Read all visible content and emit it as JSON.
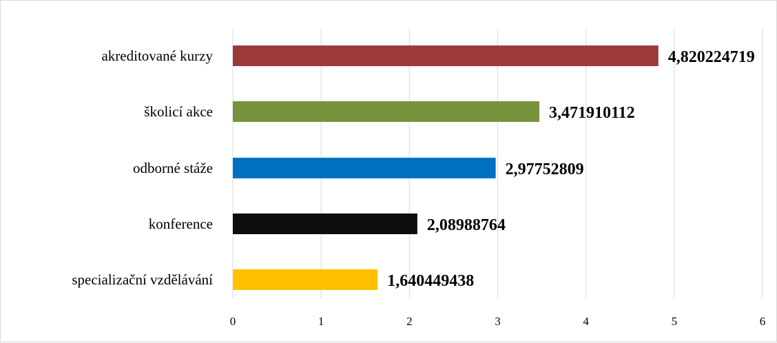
{
  "chart_data": {
    "type": "bar",
    "orientation": "horizontal",
    "categories": [
      "akreditované kurzy",
      "školicí akce",
      "odborné stáže",
      "konference",
      "specializační vzdělávání"
    ],
    "values": [
      4.820224719,
      3.471910112,
      2.97752809,
      2.08988764,
      1.640449438
    ],
    "data_labels": [
      "4,820224719",
      "3,471910112",
      "2,97752809",
      "2,08988764",
      "1,640449438"
    ],
    "colors": [
      "#9b3a38",
      "#77933c",
      "#0070c0",
      "#0d0d0d",
      "#ffc000"
    ],
    "xlim": [
      0,
      6
    ],
    "x_ticks": [
      "0",
      "1",
      "2",
      "3",
      "4",
      "5",
      "6"
    ],
    "grid": true,
    "title": "",
    "xlabel": "",
    "ylabel": ""
  }
}
